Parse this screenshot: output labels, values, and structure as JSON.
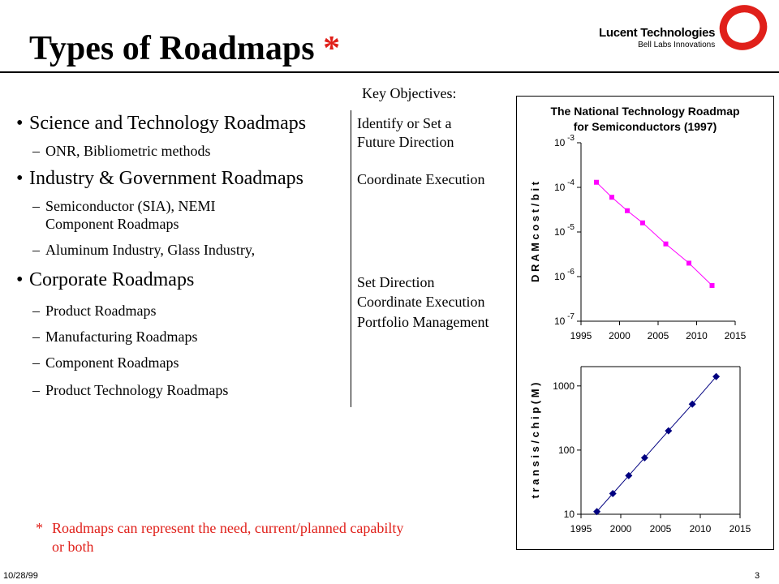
{
  "slide": {
    "title": "Types of Roadmaps",
    "title_mark": "*",
    "logo": {
      "name": "Lucent Technologies",
      "sub": "Bell Labs Innovations"
    },
    "objectives_header": "Key Objectives:",
    "sections": [
      {
        "label": "Science and Technology Roadmaps",
        "subs": [
          "ONR, Bibliometric methods"
        ],
        "objectives": [
          "Identify or Set a",
          "Future Direction"
        ]
      },
      {
        "label": "Industry & Government Roadmaps",
        "subs": [
          "Semiconductor (SIA), NEMI",
          "Component Roadmaps",
          "Aluminum Industry, Glass Industry,"
        ],
        "objectives": [
          "Coordinate Execution"
        ]
      },
      {
        "label": "Corporate Roadmaps",
        "subs": [
          "Product Roadmaps",
          "Manufacturing Roadmaps",
          "Component Roadmaps",
          "Product Technology Roadmaps"
        ],
        "objectives": [
          "Set Direction",
          "Coordinate Execution",
          "Portfolio Management"
        ]
      }
    ],
    "footnote_mark": "*",
    "footnote": [
      "Roadmaps can represent the need, current/planned capabilty",
      "or both"
    ],
    "date": "10/28/99",
    "page": "3"
  },
  "chart_data": [
    {
      "type": "line",
      "title": "The National Technology Roadmap for Semiconductors (1997)",
      "title_lines": [
        "The National Technology Roadmap",
        "for Semiconductors (1997)"
      ],
      "ylabel": "D R A M  c o s t / b i t",
      "yscale": "log",
      "xlim": [
        1995,
        2015
      ],
      "ylim": [
        1e-07,
        0.001
      ],
      "xticks": [
        1995,
        2000,
        2005,
        2010,
        2015
      ],
      "xtick_labels": [
        "1995",
        "2000",
        "2005",
        "2010",
        "2015"
      ],
      "ytick_labels": [
        {
          "base": "10",
          "exp": "-3"
        },
        {
          "base": "10",
          "exp": "-4"
        },
        {
          "base": "10",
          "exp": "-5"
        },
        {
          "base": "10",
          "exp": "-6"
        },
        {
          "base": "10",
          "exp": "-7"
        }
      ],
      "series": [
        {
          "marker": "square",
          "color": "#ff00ff",
          "x": [
            1997,
            1999,
            2001,
            2003,
            2006,
            2009,
            2012
          ],
          "y": [
            0.00013,
            6e-05,
            3e-05,
            1.6e-05,
            5.4e-06,
            2e-06,
            6.3e-07
          ]
        }
      ]
    },
    {
      "type": "line",
      "ylabel": "t r a n s i s / c h i p  ( M )",
      "yscale": "log",
      "xlim": [
        1995,
        2015
      ],
      "ylim": [
        10,
        2000
      ],
      "xticks": [
        1995,
        2000,
        2005,
        2010,
        2015
      ],
      "xtick_labels": [
        "1995",
        "2000",
        "2005",
        "2010",
        "2015"
      ],
      "yticks": [
        10,
        100,
        1000
      ],
      "ytick_labels": [
        "10",
        "100",
        "1000"
      ],
      "series": [
        {
          "marker": "diamond",
          "color": "#000080",
          "x": [
            1997,
            1999,
            2001,
            2003,
            2006,
            2009,
            2012
          ],
          "y": [
            11,
            21,
            40,
            76,
            200,
            520,
            1400
          ]
        }
      ]
    }
  ]
}
